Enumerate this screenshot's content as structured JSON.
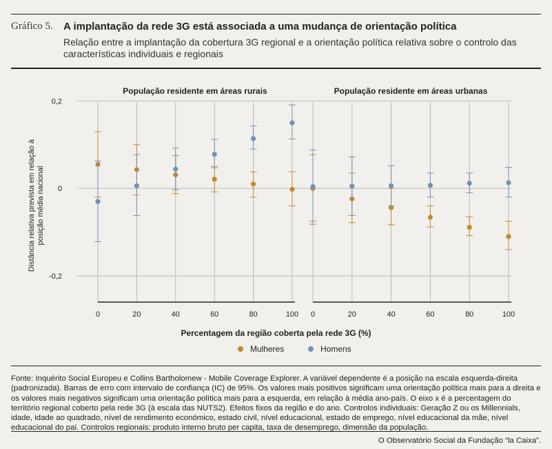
{
  "header": {
    "figure_label": "Gráfico 5.",
    "title": "A implantação da rede 3G está associada a uma mudança de orientação política",
    "subtitle": "Relação entre a implantação da cobertura 3G regional e a orientação política relativa sobre o controlo das características individuais e regionais"
  },
  "colors": {
    "mulheres": "#c48a2c",
    "homens": "#6f93b4",
    "grid": "#b9b9b9",
    "axis": "#222222"
  },
  "chart_data": {
    "type": "scatter",
    "xlabel": "Percentagem da região coberta pela rede 3G (%)",
    "ylabel": "Distância relativa prevista em relação à posição média nacional",
    "ylim": [
      -0.26,
      0.21
    ],
    "yticks": [
      {
        "v": 0.2,
        "label": "0,2"
      },
      {
        "v": 0,
        "label": "0"
      },
      {
        "v": -0.2,
        "label": "-0,2"
      }
    ],
    "xticks": [
      0,
      20,
      40,
      60,
      80,
      100
    ],
    "legend": [
      {
        "key": "mulheres",
        "label": "Mulheres"
      },
      {
        "key": "homens",
        "label": "Homens"
      }
    ],
    "panels": [
      {
        "title": "População residente em áreas rurais",
        "series": [
          {
            "name": "Mulheres",
            "key": "mulheres",
            "x": [
              0,
              20,
              40,
              60,
              80,
              100
            ],
            "y": [
              0.055,
              0.043,
              0.031,
              0.021,
              0.01,
              -0.002
            ],
            "lo": [
              -0.02,
              -0.015,
              -0.012,
              -0.008,
              -0.02,
              -0.04
            ],
            "hi": [
              0.13,
              0.1,
              0.075,
              0.05,
              0.038,
              0.038
            ]
          },
          {
            "name": "Homens",
            "key": "homens",
            "x": [
              0,
              20,
              40,
              60,
              80,
              100
            ],
            "y": [
              -0.03,
              0.006,
              0.044,
              0.078,
              0.114,
              0.15
            ],
            "lo": [
              -0.122,
              -0.062,
              -0.003,
              0.047,
              0.09,
              0.113
            ],
            "hi": [
              0.063,
              0.077,
              0.092,
              0.112,
              0.143,
              0.191
            ]
          }
        ]
      },
      {
        "title": "População residente em áreas urbanas",
        "series": [
          {
            "name": "Mulheres",
            "key": "mulheres",
            "x": [
              0,
              20,
              40,
              60,
              80,
              100
            ],
            "y": [
              0.0,
              -0.024,
              -0.044,
              -0.066,
              -0.089,
              -0.11
            ],
            "lo": [
              -0.075,
              -0.078,
              -0.083,
              -0.088,
              -0.108,
              -0.14
            ],
            "hi": [
              0.077,
              0.035,
              0.0,
              -0.04,
              -0.065,
              -0.075
            ]
          },
          {
            "name": "Homens",
            "key": "homens",
            "x": [
              0,
              20,
              40,
              60,
              80,
              100
            ],
            "y": [
              0.004,
              0.005,
              0.006,
              0.007,
              0.012,
              0.013
            ],
            "lo": [
              -0.082,
              -0.062,
              -0.04,
              -0.02,
              -0.01,
              -0.02
            ],
            "hi": [
              0.088,
              0.072,
              0.052,
              0.035,
              0.035,
              0.048
            ]
          }
        ]
      }
    ]
  },
  "footer": {
    "source": "Fonte: Inquérito Social Europeu e Collins Bartholomew - Mobile Coverage Explorer. A variável dependente é a posição na escala esquerda-direita (padronizada). Barras de erro com intervalo de confiança (IC) de 95%. Os valores mais positivos significam uma orientação política mais para a direita e os valores mais negativos significam uma orientação política mais para a esquerda, em relação à média ano-país. O eixo x é a percentagem do território regional coberto pela rede 3G (à escala das NUTS2). Efeitos fixos da região e do ano. Controlos individuais: Geração Z ou os Millennials, idade, idade ao quadrado, nível de rendimento económico, estado civil, nível educacional, estado de emprego, nível educacional da mãe, nível educacional do pai. Controlos regionais: produto interno bruto per capita, taxa de desemprego, dimensão da população.",
    "credit": "O Observatório Social da Fundação “la Caixa”."
  }
}
